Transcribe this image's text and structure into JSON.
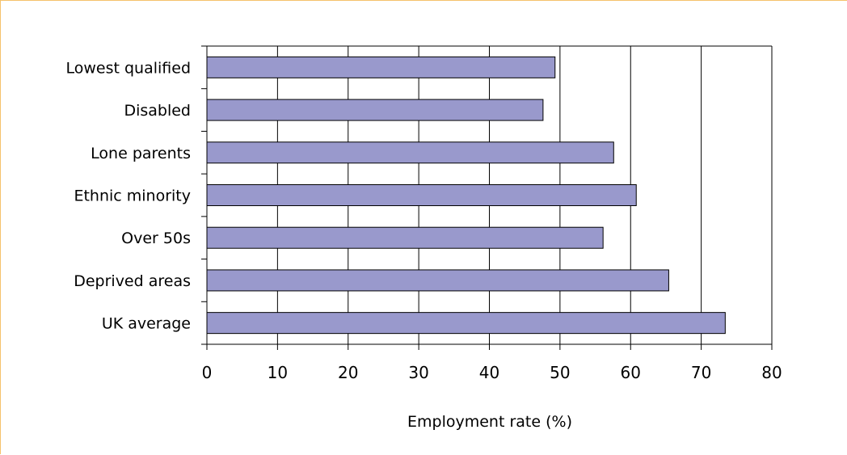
{
  "chart_data": {
    "type": "bar",
    "orientation": "horizontal",
    "categories": [
      "Lowest qualified",
      "Disabled",
      "Lone parents",
      "Ethnic minority",
      "Over 50s",
      "Deprived areas",
      "UK average"
    ],
    "values": [
      49.3,
      47.6,
      57.6,
      60.8,
      56.1,
      65.4,
      73.4
    ],
    "xlabel": "Employment rate (%)",
    "ylabel": "",
    "xlim": [
      0,
      80
    ],
    "xticks": [
      0,
      10,
      20,
      30,
      40,
      50,
      60,
      70,
      80
    ],
    "grid": "vertical",
    "colors": {
      "bar_fill": "#9999cc",
      "bar_stroke": "#000000",
      "grid": "#000000",
      "frame": "#f5c26b"
    }
  }
}
